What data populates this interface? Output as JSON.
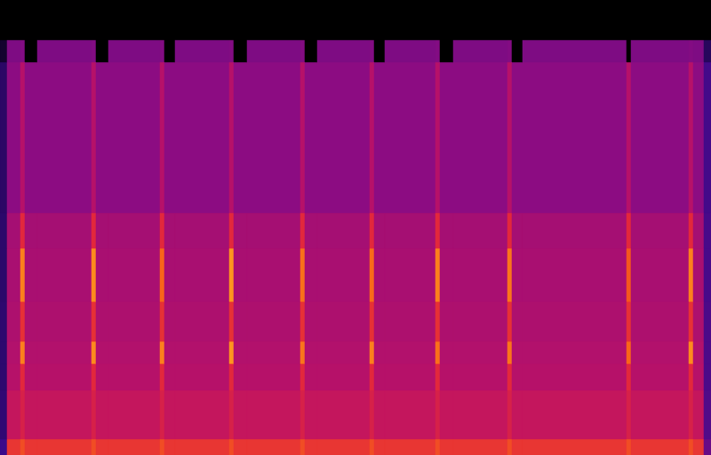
{
  "chart_data": {
    "type": "heatmap",
    "tick_labels": false,
    "xlim": [
      0,
      800
    ],
    "ylim": [
      0,
      513
    ],
    "color_range": [
      -120,
      0
    ],
    "x_bins": [
      0,
      8,
      23,
      28,
      42,
      103,
      108,
      122,
      180,
      185,
      197,
      258,
      263,
      278,
      338,
      343,
      357,
      416,
      421,
      433,
      490,
      495,
      510,
      571,
      576,
      588,
      705,
      710,
      775,
      780,
      792,
      800
    ],
    "y_bins": [
      0,
      18,
      73,
      103,
      128,
      173,
      233,
      273,
      443,
      468,
      513
    ],
    "cells": [
      [
        -90,
        -45,
        -40,
        -45,
        -45,
        -40,
        -45,
        -45,
        -40,
        -45,
        -45,
        -40,
        -45,
        -45,
        -40,
        -45,
        -45,
        -40,
        -45,
        -45,
        -40,
        -45,
        -45,
        -40,
        -45,
        -45,
        -40,
        -45,
        -40,
        -45,
        -80
      ],
      [
        -95,
        -58,
        -52,
        -58,
        -58,
        -52,
        -58,
        -58,
        -52,
        -58,
        -58,
        -52,
        -58,
        -58,
        -52,
        -58,
        -58,
        -52,
        -58,
        -58,
        -52,
        -58,
        -58,
        -52,
        -58,
        -58,
        -52,
        -58,
        -52,
        -58,
        -85
      ],
      [
        -96,
        -62,
        -48,
        -62,
        -62,
        -48,
        -62,
        -62,
        -48,
        -62,
        -62,
        -48,
        -62,
        -62,
        -48,
        -62,
        -62,
        -48,
        -62,
        -62,
        -48,
        -62,
        -62,
        -48,
        -62,
        -62,
        -48,
        -62,
        -48,
        -62,
        -86
      ],
      [
        -96,
        -63,
        -30,
        -63,
        -63,
        -28,
        -63,
        -63,
        -30,
        -63,
        -63,
        -26,
        -63,
        -63,
        -32,
        -63,
        -63,
        -30,
        -63,
        -63,
        -33,
        -63,
        -63,
        -32,
        -63,
        -63,
        -35,
        -63,
        -28,
        -63,
        -86
      ],
      [
        -96,
        -64,
        -46,
        -64,
        -64,
        -46,
        -64,
        -64,
        -46,
        -64,
        -64,
        -46,
        -64,
        -64,
        -46,
        -64,
        -64,
        -46,
        -64,
        -64,
        -46,
        -64,
        -64,
        -46,
        -64,
        -64,
        -46,
        -64,
        -46,
        -64,
        -86
      ],
      [
        -97,
        -65,
        -30,
        -65,
        -65,
        -28,
        -65,
        -65,
        -35,
        -65,
        -65,
        -26,
        -65,
        -65,
        -33,
        -65,
        -65,
        -34,
        -65,
        -65,
        -30,
        -65,
        -65,
        -32,
        -65,
        -65,
        -38,
        -65,
        -30,
        -65,
        -87
      ],
      [
        -97,
        -66,
        -48,
        -66,
        -66,
        -48,
        -66,
        -66,
        -48,
        -66,
        -66,
        -48,
        -66,
        -66,
        -48,
        -66,
        -66,
        -48,
        -66,
        -66,
        -48,
        -66,
        -66,
        -48,
        -66,
        -66,
        -48,
        -66,
        -48,
        -66,
        -87
      ],
      [
        -98,
        -72,
        -62,
        -72,
        -72,
        -62,
        -72,
        -72,
        -62,
        -72,
        -72,
        -62,
        -72,
        -72,
        -62,
        -72,
        -72,
        -62,
        -72,
        -72,
        -62,
        -72,
        -72,
        -62,
        -72,
        -72,
        -62,
        -72,
        -62,
        -72,
        -88
      ],
      [
        -110,
        -75,
        -74,
        -120,
        -75,
        -74,
        -120,
        -75,
        -74,
        -120,
        -75,
        -74,
        -120,
        -75,
        -74,
        -120,
        -75,
        -74,
        -120,
        -75,
        -74,
        -120,
        -75,
        -74,
        -120,
        -75,
        -120,
        -75,
        -74,
        -75,
        -100
      ],
      [
        -120,
        -120,
        -120,
        -120,
        -120,
        -120,
        -120,
        -120,
        -120,
        -120,
        -120,
        -120,
        -120,
        -120,
        -120,
        -120,
        -120,
        -120,
        -120,
        -120,
        -120,
        -120,
        -120,
        -120,
        -120,
        -120,
        -120,
        -120,
        -120,
        -120,
        -120
      ]
    ]
  }
}
